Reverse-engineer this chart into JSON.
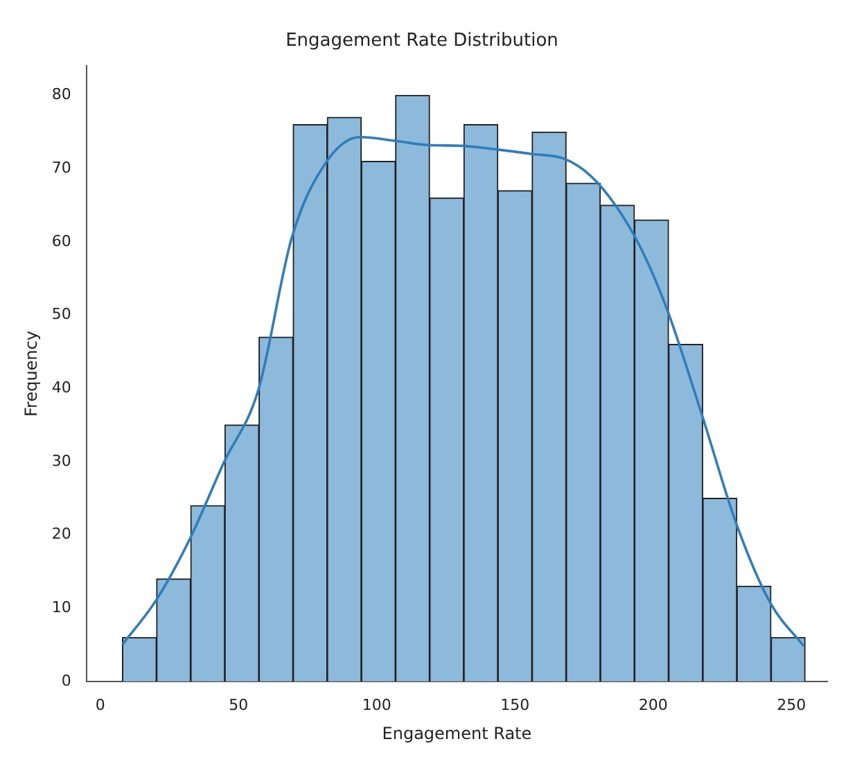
{
  "chart_data": {
    "type": "histogram",
    "title": "Engagement Rate Distribution",
    "xlabel": "Engagement Rate",
    "ylabel": "Frequency",
    "bins": [
      8,
      20.35,
      32.7,
      45.05,
      57.4,
      69.75,
      82.1,
      94.45,
      106.8,
      119.15,
      131.5,
      143.85,
      156.2,
      168.55,
      180.9,
      193.25,
      205.6,
      217.95,
      230.3,
      242.65,
      255
    ],
    "values": [
      6,
      14,
      24,
      35,
      47,
      76,
      77,
      71,
      80,
      66,
      76,
      67,
      75,
      68,
      65,
      63,
      46,
      25,
      13,
      6
    ],
    "color": "#8db9db",
    "series": [
      {
        "type": "line",
        "color": "#2e7ebc",
        "x": [
          8,
          20.6,
          32.6,
          44.6,
          57.2,
          69.3,
          81.6,
          94,
          106.4,
          118.8,
          131,
          143.5,
          155.9,
          168.1,
          177.4,
          186.7,
          196,
          205.3,
          217.8,
          230.2,
          242.4,
          254.5
        ],
        "values": [
          5,
          11.3,
          19.6,
          29.8,
          39.8,
          60.6,
          70.8,
          74.3,
          73.8,
          73.2,
          73.1,
          72.6,
          72,
          71.3,
          69,
          64.8,
          58.8,
          50.5,
          36.2,
          21.4,
          10.7,
          4.8
        ]
      }
    ],
    "xlim": [
      -5,
      263
    ],
    "xticks": [
      0,
      50,
      100,
      150,
      200,
      250
    ],
    "ylim": [
      0,
      84
    ],
    "yticks": [
      0,
      10,
      20,
      30,
      40,
      50,
      60,
      70,
      80
    ],
    "grid": false,
    "legend": false
  }
}
